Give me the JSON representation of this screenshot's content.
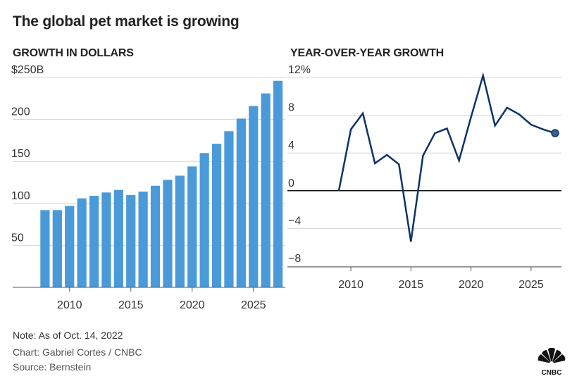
{
  "title": "The global pet market is growing",
  "footer": {
    "note": "Note: As of Oct. 14, 2022",
    "credit": "Chart: Gabriel Cortes / CNBC",
    "source": "Source: Bernstein"
  },
  "logo": {
    "icon": "cnbc-peacock-logo",
    "text": "CNBC"
  },
  "colors": {
    "bar": "#4a9ad9",
    "line": "#0d3366",
    "grid": "#d4d4d4",
    "zero": "#111111"
  },
  "chart_data": [
    {
      "type": "bar",
      "title": "GROWTH IN DOLLARS",
      "x": [
        2008,
        2009,
        2010,
        2011,
        2012,
        2013,
        2014,
        2015,
        2016,
        2017,
        2018,
        2019,
        2020,
        2021,
        2022,
        2023,
        2024,
        2025,
        2026,
        2027
      ],
      "values": [
        92,
        92,
        97,
        106,
        109,
        113,
        116,
        110,
        114,
        121,
        128,
        133,
        144,
        160,
        171,
        186,
        201,
        216,
        231,
        246
      ],
      "ylim": [
        0,
        250
      ],
      "yticks": [
        50,
        100,
        150,
        200,
        250
      ],
      "ytick_labels": [
        "50",
        "100",
        "150",
        "200",
        "$250B"
      ],
      "xticks": [
        2010,
        2015,
        2020,
        2025
      ],
      "xtick_labels": [
        "2010",
        "2015",
        "2020",
        "2025"
      ],
      "grid": true
    },
    {
      "type": "line",
      "title": "YEAR-OVER-YEAR GROWTH",
      "x": [
        2009,
        2010,
        2011,
        2012,
        2013,
        2014,
        2015,
        2016,
        2017,
        2018,
        2019,
        2020,
        2021,
        2022,
        2023,
        2024,
        2025,
        2026,
        2027
      ],
      "values": [
        0,
        6.5,
        8.2,
        2.9,
        3.8,
        2.8,
        -5.4,
        3.7,
        6.1,
        6.6,
        3.2,
        7.8,
        12.2,
        6.9,
        8.8,
        8.1,
        7.0,
        6.5,
        6.1
      ],
      "ylim": [
        -8,
        12
      ],
      "yticks": [
        -8,
        -4,
        0,
        4,
        8,
        12
      ],
      "ytick_labels": [
        "−8",
        "−4",
        "0",
        "4",
        "8",
        "12%"
      ],
      "xticks": [
        2010,
        2015,
        2020,
        2025
      ],
      "xtick_labels": [
        "2010",
        "2015",
        "2020",
        "2025"
      ],
      "grid": true,
      "end_marker": true
    }
  ]
}
